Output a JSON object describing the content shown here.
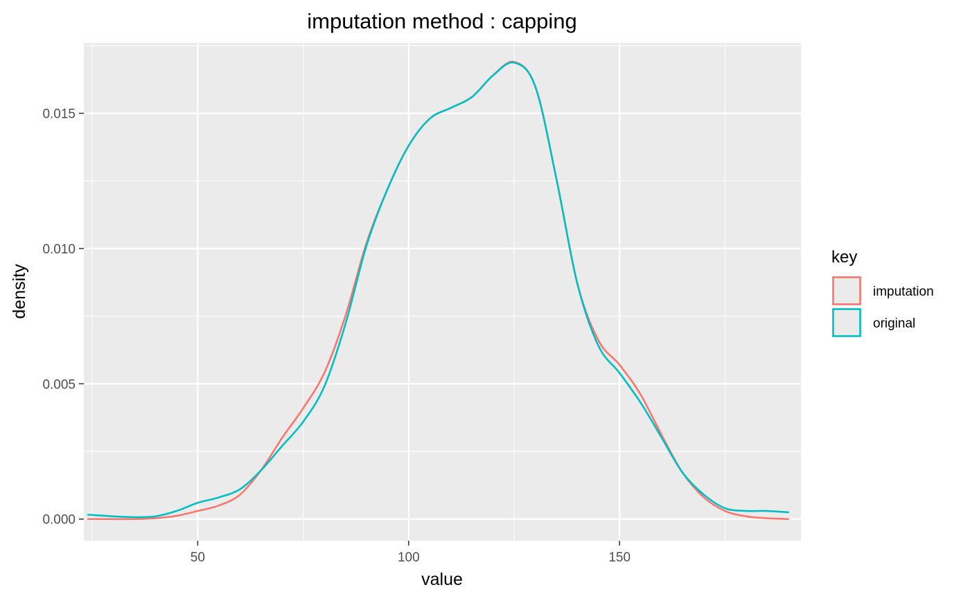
{
  "chart_data": {
    "type": "line",
    "title": "imputation method : capping",
    "xlabel": "value",
    "ylabel": "density",
    "xlim": [
      23,
      193
    ],
    "ylim": [
      -0.0008,
      0.0176
    ],
    "x_ticks": [
      50,
      100,
      150
    ],
    "x_tick_labels": [
      "50",
      "100",
      "150"
    ],
    "x_minor_ticks": [
      25,
      75,
      125,
      175
    ],
    "y_ticks": [
      0.0,
      0.005,
      0.01,
      0.015
    ],
    "y_tick_labels": [
      "0.000",
      "0.005",
      "0.010",
      "0.015"
    ],
    "y_minor_ticks": [
      0.0025,
      0.0075,
      0.0125,
      0.0175
    ],
    "grid": true,
    "legend": {
      "title": "key",
      "position": "right"
    },
    "series": [
      {
        "name": "imputation",
        "color": "#F8766D",
        "x": [
          24,
          30,
          35,
          40,
          45,
          50,
          55,
          60,
          65,
          70,
          75,
          80,
          85,
          90,
          95,
          100,
          105,
          110,
          115,
          120,
          125,
          130,
          135,
          140,
          145,
          150,
          155,
          160,
          165,
          170,
          175,
          180,
          185,
          190
        ],
        "y": [
          0.0,
          0.0,
          0.0,
          3e-05,
          0.00012,
          0.0003,
          0.0005,
          0.0009,
          0.0018,
          0.003,
          0.0041,
          0.0054,
          0.0075,
          0.0102,
          0.0122,
          0.0138,
          0.0148,
          0.0152,
          0.0156,
          0.0164,
          0.0169,
          0.016,
          0.0126,
          0.0087,
          0.0066,
          0.0057,
          0.0046,
          0.0031,
          0.0017,
          0.0008,
          0.0003,
          0.0001,
          3e-05,
          0.0
        ]
      },
      {
        "name": "original",
        "color": "#00BFC4",
        "x": [
          24,
          30,
          35,
          40,
          45,
          50,
          55,
          60,
          65,
          70,
          75,
          80,
          85,
          90,
          95,
          100,
          105,
          110,
          115,
          120,
          125,
          130,
          135,
          140,
          145,
          150,
          155,
          160,
          165,
          170,
          175,
          180,
          185,
          190
        ],
        "y": [
          0.00016,
          0.0001,
          7e-05,
          0.0001,
          0.0003,
          0.0006,
          0.0008,
          0.0011,
          0.0018,
          0.0027,
          0.0036,
          0.0049,
          0.0072,
          0.0101,
          0.0122,
          0.0138,
          0.0148,
          0.0152,
          0.0156,
          0.0164,
          0.01687,
          0.016,
          0.0126,
          0.0087,
          0.0064,
          0.0054,
          0.0043,
          0.003,
          0.0017,
          0.0009,
          0.0004,
          0.0003,
          0.0003,
          0.00025
        ]
      }
    ]
  }
}
